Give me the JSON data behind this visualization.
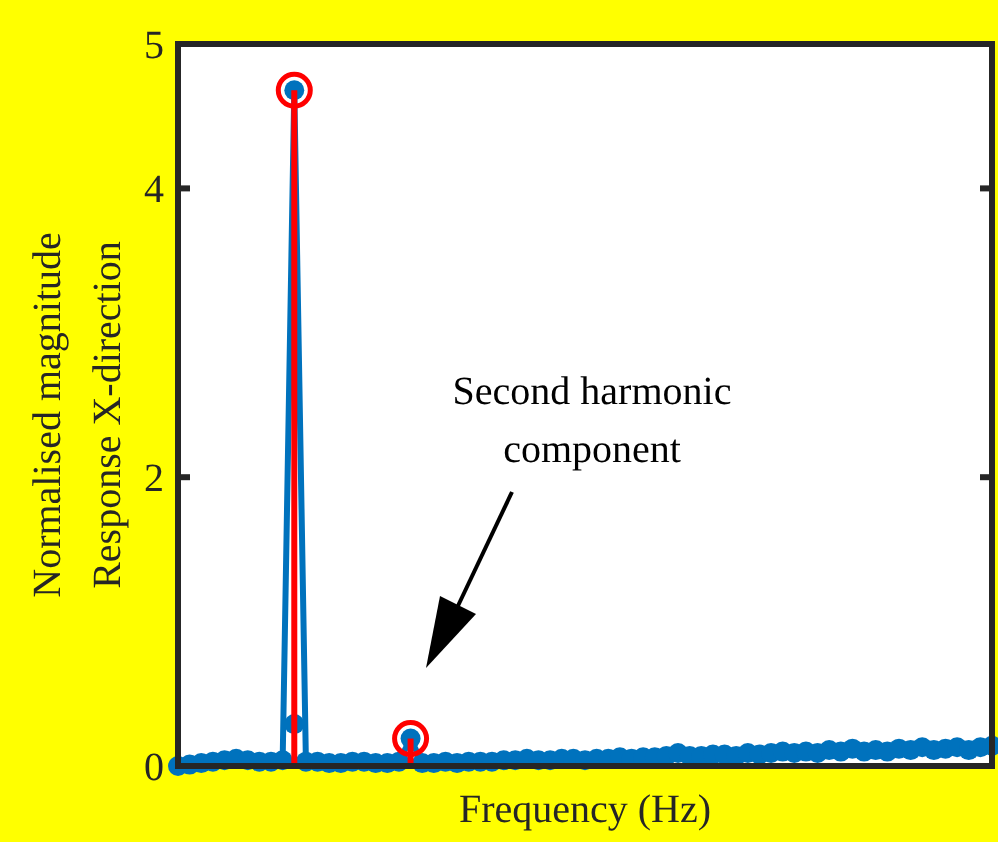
{
  "chart_data": {
    "type": "line",
    "xlabel": "Frequency (Hz)",
    "ylabel": "Normalised magnitude\nResponse X-direction",
    "categories": [
      null,
      null,
      null,
      null,
      null,
      null,
      null,
      null,
      null,
      null,
      null,
      null,
      null,
      null,
      null,
      null,
      null,
      null,
      null,
      null,
      null,
      null,
      null,
      null,
      null,
      null,
      null,
      null,
      null,
      null,
      null,
      null,
      null,
      null,
      null,
      null,
      null,
      null,
      null,
      null,
      null,
      null,
      null,
      null,
      null,
      null,
      null,
      null,
      null,
      null,
      null,
      null,
      null,
      null,
      null,
      null,
      null,
      null,
      null,
      null,
      null,
      null,
      null,
      null,
      null,
      null,
      null,
      null,
      null,
      null,
      null
    ],
    "series": [
      {
        "marker": "circle",
        "color": "#0072bd",
        "values": [
          0.0,
          0.01,
          0.02,
          0.03,
          0.04,
          0.05,
          0.04,
          0.03,
          0.03,
          0.04,
          4.68,
          0.03,
          0.03,
          0.02,
          0.02,
          0.03,
          0.03,
          0.02,
          0.02,
          0.03,
          0.19,
          0.02,
          0.02,
          0.03,
          0.02,
          0.03,
          0.03,
          0.03,
          0.04,
          0.04,
          0.05,
          0.04,
          0.04,
          0.05,
          0.05,
          0.04,
          0.05,
          0.05,
          0.06,
          0.05,
          0.06,
          0.06,
          0.07,
          0.09,
          0.07,
          0.07,
          0.08,
          0.08,
          0.07,
          0.09,
          0.08,
          0.09,
          0.1,
          0.09,
          0.1,
          0.09,
          0.11,
          0.1,
          0.12,
          0.1,
          0.11,
          0.1,
          0.12,
          0.11,
          0.13,
          0.11,
          0.12,
          0.13,
          0.11,
          0.13,
          0.14
        ]
      },
      {
        "type": "scatter",
        "marker": "circle",
        "color": "#0072bd",
        "values": [
          null,
          null,
          null,
          null,
          null,
          null,
          null,
          null,
          null,
          null,
          0.29,
          null,
          null,
          null,
          null,
          null,
          null,
          null,
          null,
          null,
          null,
          null,
          null,
          null,
          null,
          null,
          null,
          null,
          null,
          null,
          null,
          null,
          null,
          null,
          null,
          null,
          null,
          null,
          null,
          null,
          null,
          null,
          null,
          null,
          null,
          null,
          null,
          null,
          null,
          null,
          null,
          null,
          null,
          null,
          null,
          null,
          null,
          null,
          null,
          null,
          null,
          null,
          null,
          null,
          null,
          null,
          null,
          null,
          null,
          null,
          null
        ]
      },
      {
        "type": "lollipop",
        "marker": "circle",
        "color": "#ff0000",
        "values": [
          null,
          null,
          null,
          null,
          null,
          null,
          null,
          null,
          null,
          null,
          4.68,
          null,
          null,
          null,
          null,
          null,
          null,
          null,
          null,
          null,
          0.19,
          null,
          null,
          null,
          null,
          null,
          null,
          null,
          null,
          null,
          null,
          null,
          null,
          null,
          null,
          null,
          null,
          null,
          null,
          null,
          null,
          null,
          null,
          null,
          null,
          null,
          null,
          null,
          null,
          null,
          null,
          null,
          null,
          null,
          null,
          null,
          null,
          null,
          null,
          null,
          null,
          null,
          null,
          null,
          null,
          null,
          null,
          null,
          null,
          null,
          null
        ]
      }
    ],
    "ylim": [
      0,
      5
    ],
    "yticks": [
      0,
      2,
      4,
      5
    ],
    "tick_labels": "y",
    "annotations": [
      "Second harmonic\ncomponent"
    ]
  }
}
